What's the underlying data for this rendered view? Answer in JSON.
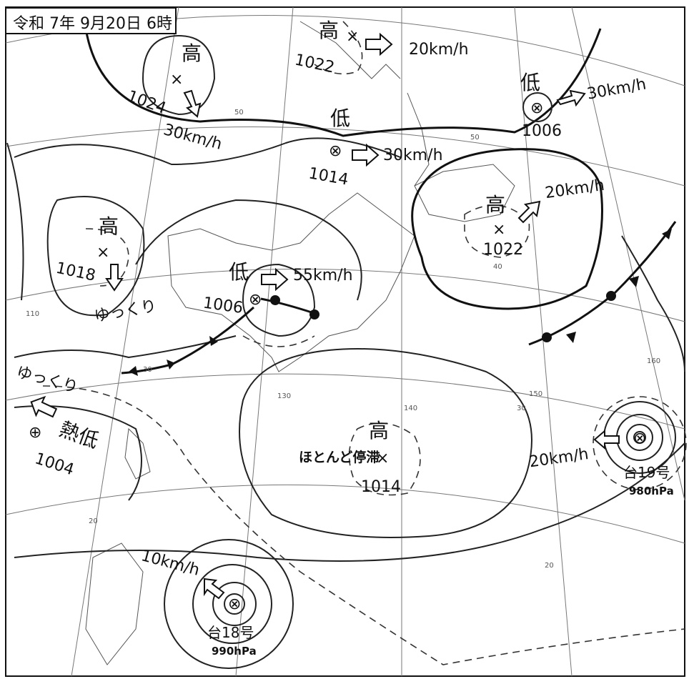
{
  "title": "令和 7年 9月20日 6時",
  "systems": [
    {
      "type": "高",
      "pressure": "1024",
      "speed": "30km/h"
    },
    {
      "type": "高",
      "pressure": "1022",
      "speed": "20km/h"
    },
    {
      "type": "低",
      "pressure": "1006",
      "speed": "30km/h"
    },
    {
      "type": "低",
      "pressure": "1014",
      "speed": "30km/h"
    },
    {
      "type": "高",
      "pressure": "1022",
      "speed": "20km/h"
    },
    {
      "type": "高",
      "pressure": "1018",
      "speed": "ゆっくり"
    },
    {
      "type": "低",
      "pressure": "1006",
      "speed": "55km/h"
    },
    {
      "type": "熱低",
      "pressure": "1004",
      "speed": "ゆっくり"
    },
    {
      "type": "高",
      "pressure": "1014",
      "speed": "ほとんど停滞"
    }
  ],
  "typhoons": [
    {
      "name": "台19号",
      "pressure": "980hPa",
      "speed": "20km/h"
    },
    {
      "name": "台18号",
      "pressure": "990hPa",
      "speed": "10km/h"
    }
  ],
  "grid_labels": [
    "50",
    "50",
    "40",
    "30",
    "20",
    "20",
    "110",
    "130",
    "140",
    "150",
    "160",
    "30"
  ],
  "symbols": {
    "high_center": "×",
    "low_center": "⊗",
    "tropical_low_center": "⊕"
  }
}
